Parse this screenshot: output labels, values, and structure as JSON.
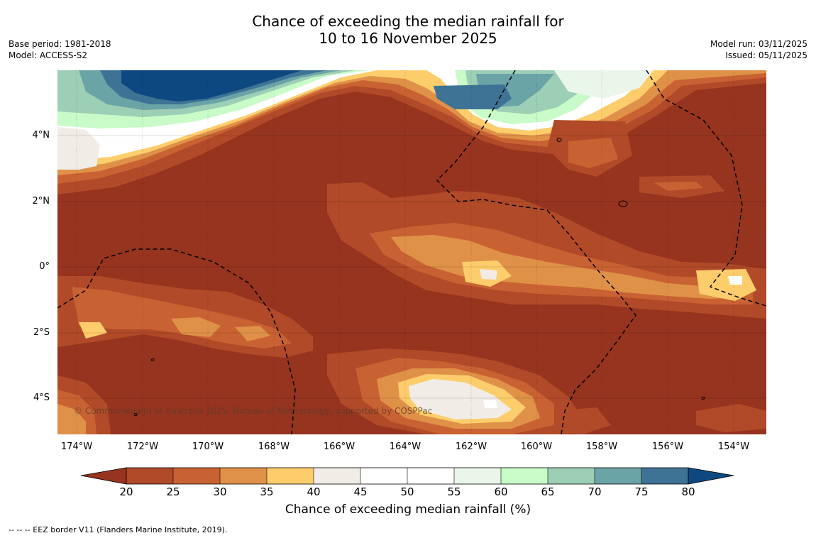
{
  "title": {
    "line1": "Chance of exceeding the median rainfall for",
    "line2": "10 to 16 November 2025"
  },
  "meta_left": {
    "base_period": "Base period: 1981-2018",
    "model": "Model: ACCESS-S2"
  },
  "meta_right": {
    "model_run": "Model run: 03/11/2025",
    "issued": "Issued: 05/11/2025"
  },
  "map": {
    "latitude_labels": [
      "4°N",
      "2°N",
      "0°",
      "2°S",
      "4°S"
    ],
    "longitude_labels": [
      "174°W",
      "172°W",
      "170°W",
      "168°W",
      "166°W",
      "164°W",
      "162°W",
      "160°W",
      "158°W",
      "156°W",
      "154°W"
    ],
    "copyright": "© Commonwealth of Australia 2025, Bureau of Meteorology, supported by COSPPac",
    "colors": {
      "lt20": "#97341f",
      "c20_25": "#b04a28",
      "c25_30": "#c96232",
      "c30_35": "#df9148",
      "c35_40": "#fdcd6c",
      "c40_45": "#f1ede6",
      "c45_55": "#ffffff",
      "c55_60": "#ebf6ea",
      "c60_65": "#c8fbc7",
      "c65_70": "#9ccfb6",
      "c70_75": "#6ba4a6",
      "c75_80": "#3e7396",
      "gt80": "#0e4880"
    }
  },
  "colorbar": {
    "ticks": [
      "20",
      "25",
      "30",
      "35",
      "40",
      "45",
      "50",
      "55",
      "60",
      "65",
      "70",
      "75",
      "80"
    ],
    "label": "Chance of exceeding median rainfall (%)"
  },
  "footnote": "--  --  -- EEZ border V11 (Flanders Marine Institute, 2019)."
}
